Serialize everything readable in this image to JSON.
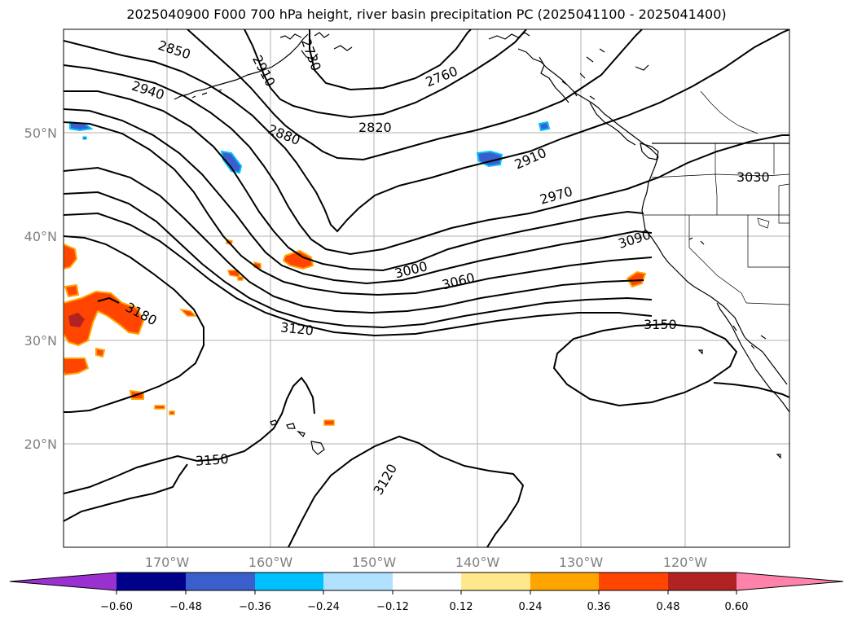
{
  "title": "2025040900 F000 700 hPa height, river basin precipitation PC (2025041100 - 2025041400)",
  "map": {
    "lon_ticks": [
      "170°W",
      "160°W",
      "150°W",
      "140°W",
      "130°W",
      "120°W"
    ],
    "lat_ticks": [
      "50°N",
      "40°N",
      "30°N",
      "20°N"
    ],
    "contour_labels": [
      "2850",
      "2910",
      "2730",
      "2760",
      "2940",
      "2820",
      "2880",
      "2910",
      "2970",
      "3030",
      "3090",
      "3000",
      "3060",
      "3180",
      "3120",
      "3150",
      "3150",
      "3120"
    ]
  },
  "colorbar": {
    "colors": [
      "#9b30d0",
      "#00008b",
      "#3a5fcd",
      "#00bfff",
      "#b0e2ff",
      "#ffffff",
      "#ffe88c",
      "#ffa500",
      "#ff4500",
      "#b22222",
      "#ff82ab"
    ],
    "ticks": [
      "−0.60",
      "−0.48",
      "−0.36",
      "−0.24",
      "−0.12",
      "0.12",
      "0.24",
      "0.36",
      "0.48",
      "0.60"
    ]
  }
}
